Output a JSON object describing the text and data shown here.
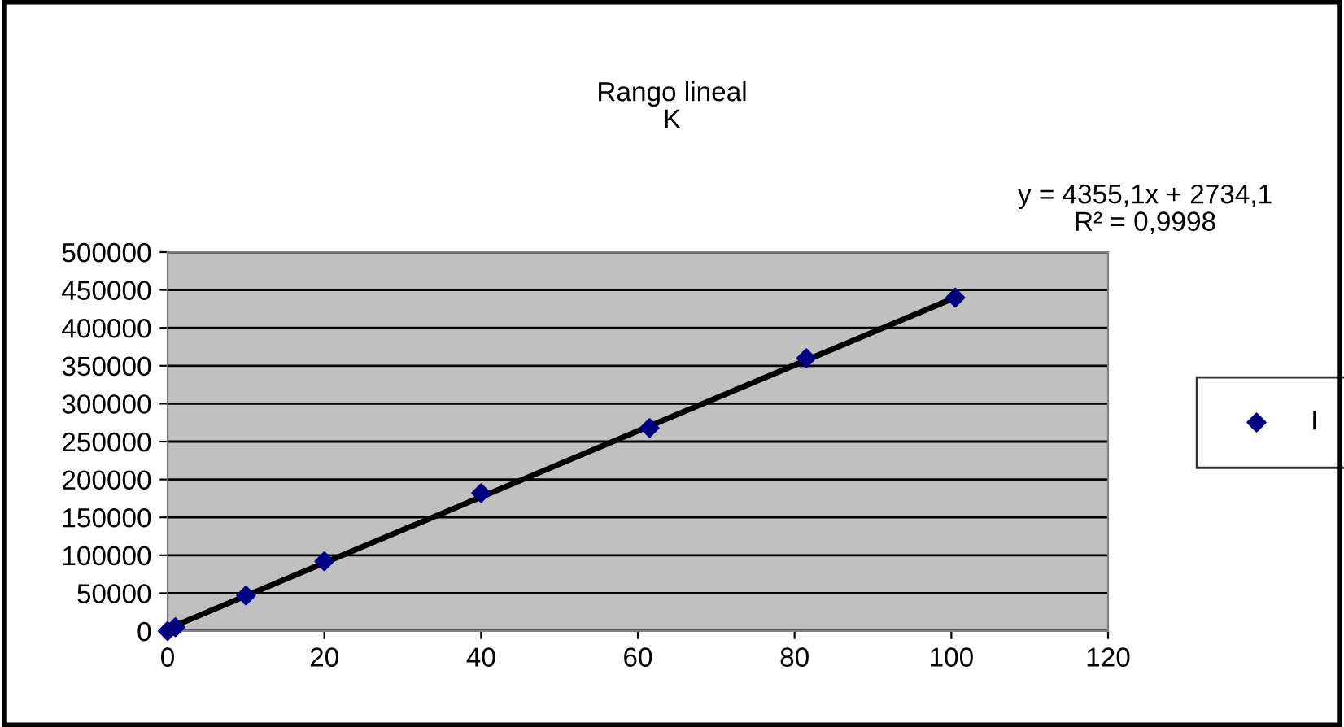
{
  "chart_data": {
    "type": "scatter",
    "title": "Rango lineal\nK",
    "annotations": [
      "y = 4355,1x + 2734,1\nR² = 0,9998"
    ],
    "series": [
      {
        "name": "I",
        "color": "#000080",
        "marker": "diamond",
        "x": [
          0,
          1,
          10,
          20,
          40,
          61.5,
          81.5,
          100.5
        ],
        "values": [
          0,
          5000,
          47000,
          92000,
          182000,
          268000,
          360000,
          440000
        ]
      },
      {
        "type": "line",
        "color": "#000000",
        "marker": "none",
        "line_style": "solid",
        "x": [
          0,
          100.5
        ],
        "values": [
          3000,
          440000
        ]
      }
    ],
    "xlim": [
      0,
      120
    ],
    "xticks": [
      0,
      20,
      40,
      60,
      80,
      100,
      120
    ],
    "ylim": [
      0,
      500000
    ],
    "yticks": [
      0,
      50000,
      100000,
      150000,
      200000,
      250000,
      300000,
      350000,
      400000,
      450000,
      500000
    ],
    "grid": "y",
    "legend": "right"
  }
}
